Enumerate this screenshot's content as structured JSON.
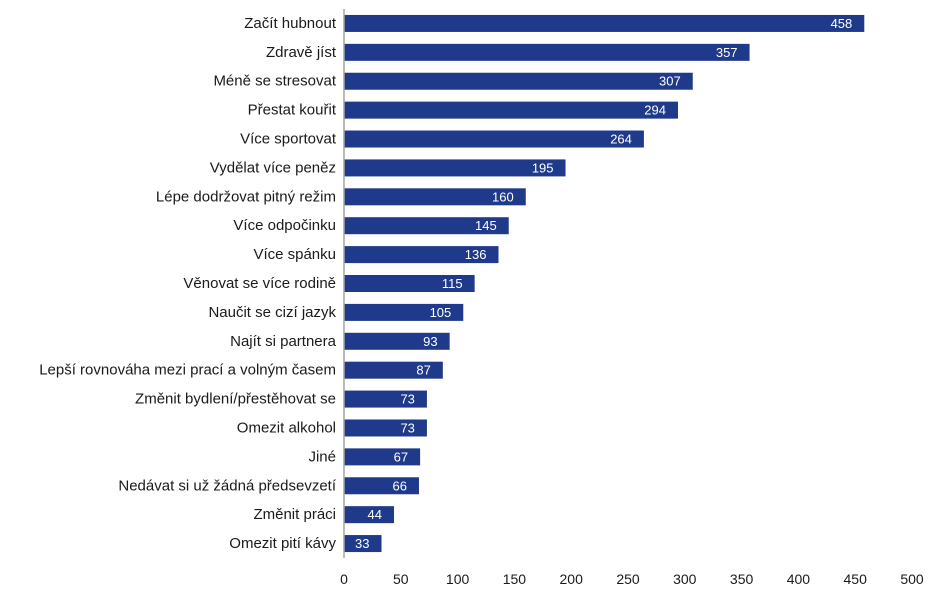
{
  "chart_data": {
    "type": "bar",
    "orientation": "horizontal",
    "title": "",
    "xlabel": "",
    "ylabel": "",
    "xlim": [
      0,
      500
    ],
    "x_ticks": [
      0,
      50,
      100,
      150,
      200,
      250,
      300,
      350,
      400,
      450,
      500
    ],
    "grid": false,
    "legend": "none",
    "bar_color": "#1f3a8a",
    "categories": [
      "Začít hubnout",
      "Zdravě jíst",
      "Méně se stresovat",
      "Přestat kouřit",
      "Více sportovat",
      "Vydělat více peněz",
      "Lépe dodržovat pitný režim",
      "Více odpočinku",
      "Více spánku",
      "Věnovat se více rodině",
      "Naučit se cizí jazyk",
      "Najít si partnera",
      "Lepší rovnováha mezi prací a volným časem",
      "Změnit bydlení/přestěhovat se",
      "Omezit alkohol",
      "Jiné",
      "Nedávat si už žádná předsevzetí",
      "Změnit práci",
      "Omezit pití kávy"
    ],
    "values": [
      458,
      357,
      307,
      294,
      264,
      195,
      160,
      145,
      136,
      115,
      105,
      93,
      87,
      73,
      73,
      67,
      66,
      44,
      33
    ]
  }
}
